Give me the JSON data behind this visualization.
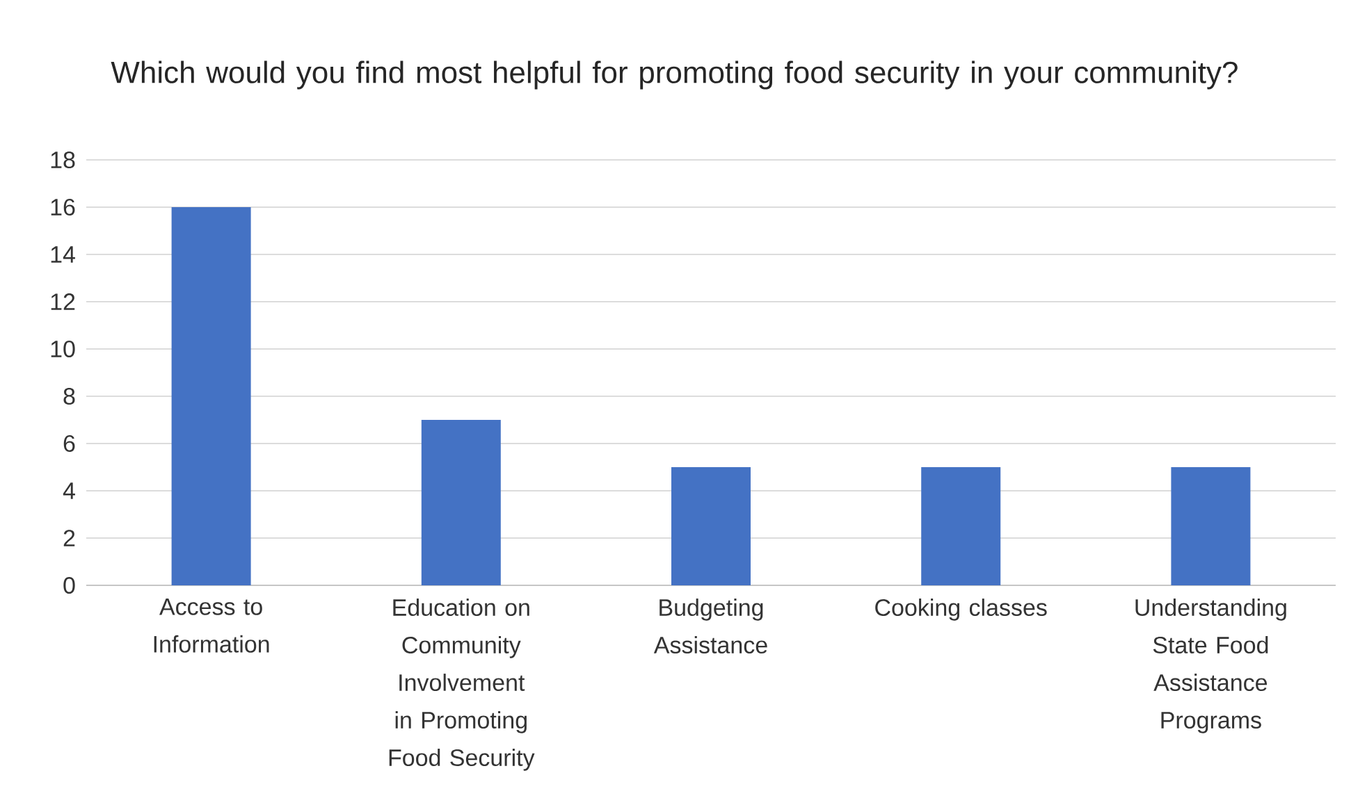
{
  "chart_data": {
    "type": "bar",
    "title": "Which would you find most helpful for promoting food security in your community?",
    "categories": [
      "Access to Information",
      "Education on Community Involvement in Promoting Food Security",
      "Budgeting Assistance",
      "Cooking classes",
      "Understanding State Food Assistance Programs"
    ],
    "values": [
      16,
      7,
      5,
      5,
      5
    ],
    "color": "#4472c4",
    "ylim": [
      0,
      18
    ],
    "yticks": [
      0,
      2,
      4,
      6,
      8,
      10,
      12,
      14,
      16,
      18
    ],
    "grid": "y"
  }
}
